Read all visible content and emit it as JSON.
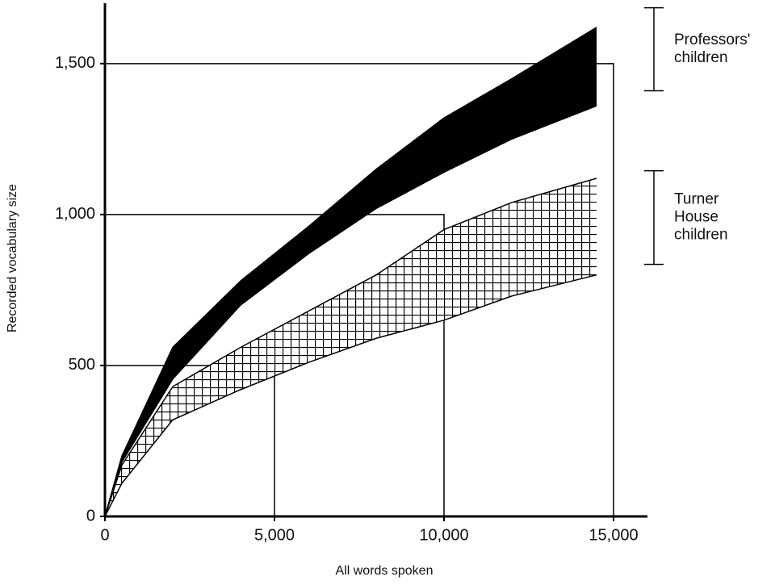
{
  "chart_data": {
    "type": "area_band",
    "x_label": "All words spoken",
    "y_label": "Recorded vocabulary size",
    "xlim": [
      0,
      16000
    ],
    "ylim": [
      0,
      1700
    ],
    "xticks": [
      0,
      {
        "value": 5000,
        "label": "5,000"
      },
      {
        "value": 10000,
        "label": "10,000"
      },
      {
        "value": 15000,
        "label": "15,000"
      }
    ],
    "yticks": [
      0,
      500,
      {
        "value": 1000,
        "label": "1,000"
      },
      {
        "value": 1500,
        "label": "1,500"
      }
    ],
    "series": [
      {
        "label_lines": [
          "Professors'",
          "children"
        ],
        "fill": "solid",
        "color": "#000000",
        "x": [
          0,
          500,
          2000,
          4000,
          6000,
          8000,
          10000,
          12000,
          14500
        ],
        "upper": [
          0,
          200,
          560,
          780,
          960,
          1150,
          1320,
          1450,
          1620
        ],
        "lower": [
          0,
          180,
          455,
          700,
          870,
          1020,
          1140,
          1250,
          1360
        ],
        "bracket": [
          1410,
          1685
        ]
      },
      {
        "label_lines": [
          "Turner",
          "House",
          "children"
        ],
        "fill": "crosshatch",
        "color": "#000000",
        "x": [
          0,
          500,
          2000,
          4000,
          6000,
          8000,
          10000,
          12000,
          14500
        ],
        "upper": [
          0,
          170,
          430,
          560,
          680,
          800,
          950,
          1040,
          1120
        ],
        "lower": [
          0,
          110,
          320,
          420,
          510,
          590,
          650,
          730,
          800
        ],
        "bracket": [
          835,
          1145
        ]
      }
    ],
    "reference": [
      {
        "x": 5000,
        "y": 500
      },
      {
        "x": 10000,
        "y": 1000
      },
      {
        "x": 15000,
        "y": 1500
      }
    ]
  }
}
